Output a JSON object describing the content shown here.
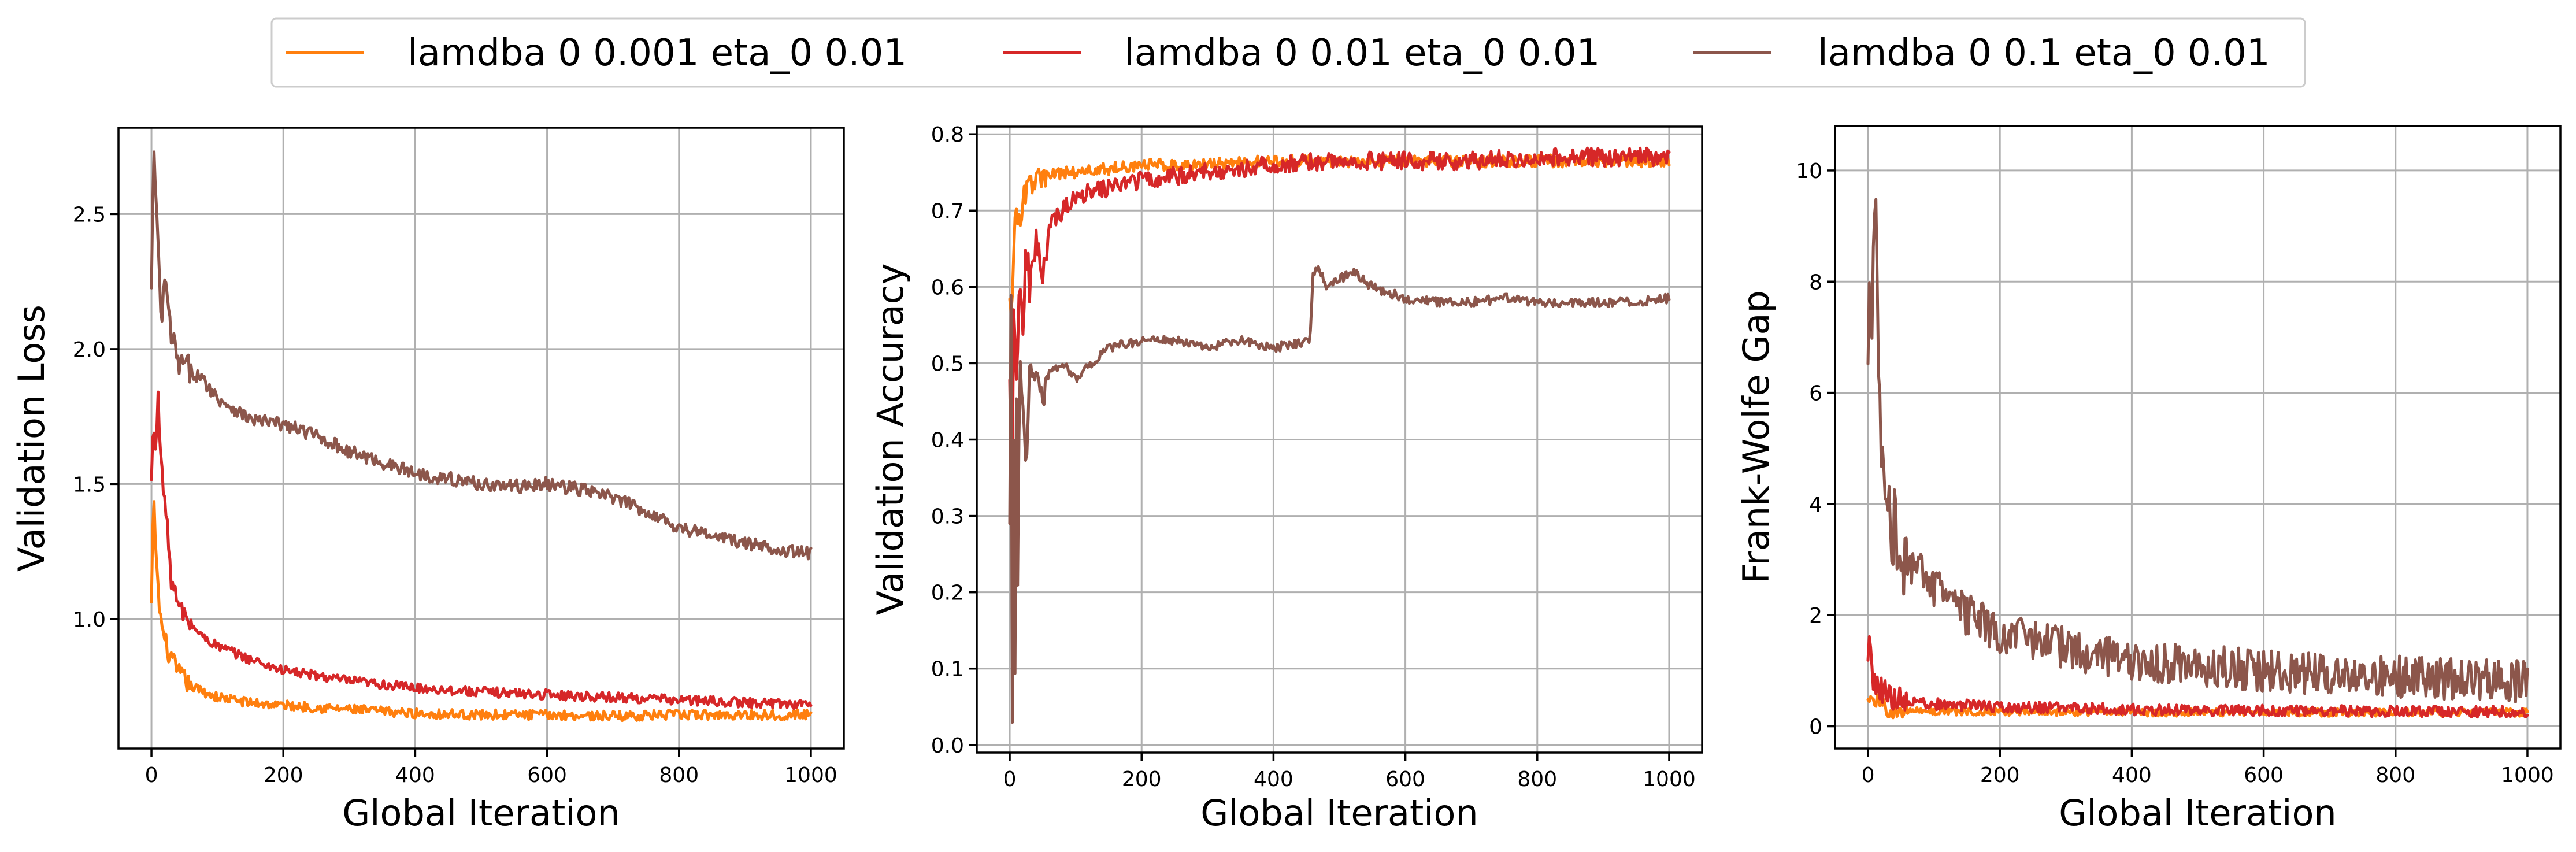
{
  "legend": {
    "entries": [
      {
        "label": "lamdba 0 0.001 eta_0 0.01",
        "color": "#ff7f0e"
      },
      {
        "label": "lamdba 0 0.01 eta_0 0.01",
        "color": "#d62728"
      },
      {
        "label": "lamdba 0 0.1 eta_0 0.01",
        "color": "#8c564b"
      }
    ],
    "placement": "top-center"
  },
  "chart_data": [
    {
      "type": "line",
      "xlabel": "Global Iteration",
      "ylabel": "Validation Loss",
      "xlim": [
        -50,
        1050
      ],
      "ylim": [
        0.52,
        2.82
      ],
      "xticks": [
        0,
        200,
        400,
        600,
        800,
        1000
      ],
      "yticks": [
        1.0,
        1.5,
        2.0,
        2.5
      ],
      "ytick_labels": [
        "1.0",
        "1.5",
        "2.0",
        "2.5"
      ],
      "grid": true,
      "series": [
        {
          "name": "lamdba 0 0.001 eta_0 0.01",
          "color": "#ff7f0e",
          "noise": 0.018,
          "x": [
            0,
            3,
            6,
            10,
            15,
            20,
            30,
            40,
            60,
            80,
            100,
            150,
            200,
            300,
            400,
            500,
            600,
            700,
            800,
            900,
            1000
          ],
          "y": [
            1.05,
            1.45,
            1.3,
            1.1,
            0.98,
            0.92,
            0.85,
            0.8,
            0.75,
            0.73,
            0.71,
            0.69,
            0.68,
            0.665,
            0.65,
            0.645,
            0.645,
            0.64,
            0.645,
            0.645,
            0.645
          ]
        },
        {
          "name": "lamdba 0 0.01 eta_0 0.01",
          "color": "#d62728",
          "noise": 0.018,
          "x": [
            0,
            3,
            6,
            10,
            15,
            20,
            25,
            30,
            40,
            60,
            80,
            100,
            150,
            200,
            300,
            400,
            500,
            600,
            700,
            800,
            900,
            1000
          ],
          "y": [
            1.5,
            1.75,
            1.6,
            1.85,
            1.55,
            1.45,
            1.3,
            1.15,
            1.05,
            0.98,
            0.93,
            0.9,
            0.85,
            0.81,
            0.77,
            0.745,
            0.73,
            0.72,
            0.71,
            0.7,
            0.69,
            0.685
          ]
        },
        {
          "name": "lamdba 0 0.1 eta_0 0.01",
          "color": "#8c564b",
          "noise": 0.025,
          "x": [
            0,
            3,
            6,
            10,
            15,
            20,
            30,
            40,
            60,
            80,
            100,
            150,
            200,
            250,
            300,
            350,
            400,
            450,
            500,
            550,
            600,
            650,
            700,
            750,
            800,
            850,
            900,
            950,
            1000
          ],
          "y": [
            2.2,
            2.75,
            2.6,
            2.35,
            2.1,
            2.25,
            2.05,
            1.95,
            1.92,
            1.88,
            1.82,
            1.74,
            1.72,
            1.68,
            1.62,
            1.58,
            1.54,
            1.52,
            1.5,
            1.49,
            1.5,
            1.48,
            1.45,
            1.4,
            1.34,
            1.31,
            1.28,
            1.26,
            1.24
          ]
        }
      ]
    },
    {
      "type": "line",
      "xlabel": "Global Iteration",
      "ylabel": "Validation Accuracy",
      "xlim": [
        -50,
        1050
      ],
      "ylim": [
        -0.01,
        0.81
      ],
      "xticks": [
        0,
        200,
        400,
        600,
        800,
        1000
      ],
      "yticks": [
        0.0,
        0.1,
        0.2,
        0.3,
        0.4,
        0.5,
        0.6,
        0.7,
        0.8
      ],
      "ytick_labels": [
        "0.0",
        "0.1",
        "0.2",
        "0.3",
        "0.4",
        "0.5",
        "0.6",
        "0.7",
        "0.8"
      ],
      "grid": true,
      "series": [
        {
          "name": "lamdba 0 0.001 eta_0 0.01",
          "color": "#ff7f0e",
          "noise": 0.008,
          "x": [
            0,
            3,
            6,
            10,
            15,
            20,
            30,
            40,
            60,
            80,
            100,
            150,
            200,
            300,
            400,
            500,
            600,
            700,
            800,
            900,
            1000
          ],
          "y": [
            0.6,
            0.55,
            0.65,
            0.7,
            0.68,
            0.72,
            0.73,
            0.74,
            0.745,
            0.75,
            0.75,
            0.755,
            0.76,
            0.76,
            0.765,
            0.765,
            0.765,
            0.765,
            0.765,
            0.765,
            0.765
          ]
        },
        {
          "name": "lamdba 0 0.01 eta_0 0.01",
          "color": "#d62728",
          "noise": 0.012,
          "x": [
            0,
            3,
            6,
            10,
            15,
            20,
            25,
            30,
            40,
            50,
            60,
            80,
            100,
            150,
            200,
            300,
            400,
            500,
            600,
            700,
            800,
            900,
            1000
          ],
          "y": [
            0.5,
            0.3,
            0.55,
            0.5,
            0.6,
            0.55,
            0.65,
            0.6,
            0.66,
            0.6,
            0.68,
            0.7,
            0.72,
            0.73,
            0.74,
            0.75,
            0.76,
            0.765,
            0.765,
            0.765,
            0.77,
            0.77,
            0.77
          ]
        },
        {
          "name": "lamdba 0 0.1 eta_0 0.01",
          "color": "#8c564b",
          "noise": 0.006,
          "x": [
            0,
            2,
            4,
            6,
            8,
            10,
            12,
            15,
            20,
            25,
            30,
            40,
            50,
            60,
            80,
            100,
            150,
            200,
            250,
            300,
            350,
            400,
            455,
            460,
            470,
            480,
            500,
            520,
            550,
            600,
            650,
            700,
            750,
            800,
            850,
            900,
            950,
            1000
          ],
          "y": [
            0.3,
            0.6,
            0.03,
            0.4,
            0.1,
            0.45,
            0.2,
            0.5,
            0.45,
            0.35,
            0.5,
            0.48,
            0.45,
            0.49,
            0.5,
            0.48,
            0.52,
            0.53,
            0.53,
            0.52,
            0.53,
            0.52,
            0.53,
            0.62,
            0.625,
            0.6,
            0.61,
            0.62,
            0.6,
            0.585,
            0.58,
            0.58,
            0.585,
            0.58,
            0.58,
            0.58,
            0.58,
            0.585
          ]
        }
      ]
    },
    {
      "type": "line",
      "xlabel": "Global Iteration",
      "ylabel": "Frank-Wolfe Gap",
      "xlim": [
        -50,
        1050
      ],
      "ylim": [
        -0.4,
        10.8
      ],
      "xticks": [
        0,
        200,
        400,
        600,
        800,
        1000
      ],
      "yticks": [
        0,
        2,
        4,
        6,
        8,
        10
      ],
      "ytick_labels": [
        "0",
        "2",
        "4",
        "6",
        "8",
        "10"
      ],
      "grid": true,
      "series": [
        {
          "name": "lamdba 0 0.001 eta_0 0.01",
          "color": "#ff7f0e",
          "noise": 0.07,
          "x": [
            0,
            5,
            10,
            20,
            40,
            60,
            100,
            200,
            400,
            600,
            800,
            1000
          ],
          "y": [
            0.5,
            0.6,
            0.45,
            0.35,
            0.3,
            0.28,
            0.27,
            0.26,
            0.25,
            0.25,
            0.25,
            0.25
          ]
        },
        {
          "name": "lamdba 0 0.01 eta_0 0.01",
          "color": "#d62728",
          "noise": 0.1,
          "x": [
            0,
            3,
            6,
            10,
            20,
            40,
            60,
            100,
            200,
            400,
            600,
            800,
            1000
          ],
          "y": [
            1.2,
            1.5,
            0.9,
            0.8,
            0.65,
            0.5,
            0.45,
            0.4,
            0.35,
            0.3,
            0.28,
            0.27,
            0.26
          ]
        },
        {
          "name": "lamdba 0 0.1 eta_0 0.01",
          "color": "#8c564b",
          "noise": 0.38,
          "x": [
            0,
            3,
            6,
            10,
            13,
            16,
            20,
            25,
            30,
            40,
            50,
            60,
            80,
            100,
            150,
            200,
            250,
            300,
            400,
            500,
            600,
            700,
            800,
            900,
            1000
          ],
          "y": [
            6.5,
            8.0,
            7.0,
            9.5,
            8.5,
            6.0,
            5.5,
            4.5,
            4.0,
            3.6,
            3.2,
            3.0,
            2.8,
            2.5,
            2.0,
            1.7,
            1.5,
            1.4,
            1.2,
            1.1,
            1.0,
            0.95,
            0.9,
            0.85,
            0.8
          ]
        }
      ]
    }
  ]
}
